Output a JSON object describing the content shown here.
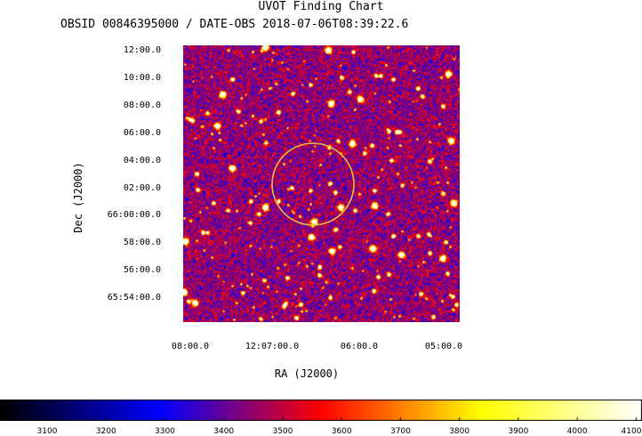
{
  "header": {
    "title": "UVOT Finding Chart",
    "subtitle": "OBSID 00846395000 / DATE-OBS 2018-07-06T08:39:22.6"
  },
  "chart_data": {
    "type": "heatmap",
    "title": "UVOT Finding Chart",
    "xlabel": "RA (J2000)",
    "ylabel": "Dec (J2000)",
    "x_ticks": [
      "08:00.0",
      "12:07:00.0",
      "06:00.0",
      "05:00.0"
    ],
    "y_ticks": [
      "12:00.0",
      "10:00.0",
      "08:00.0",
      "06:00.0",
      "04:00.0",
      "02:00.0",
      "66:00:00.0",
      "58:00.0",
      "56:00.0",
      "65:54:00.0"
    ],
    "colorbar_ticks": [
      3100,
      3200,
      3300,
      3400,
      3500,
      3600,
      3700,
      3800,
      3900,
      4000,
      4100
    ],
    "colorbar_range": [
      3020,
      4110
    ],
    "colormap": [
      "#000000",
      "#0000ff",
      "#ff0000",
      "#ffff00",
      "#ffffff"
    ],
    "marker": {
      "shape": "circle",
      "color": "#e8c040"
    }
  }
}
